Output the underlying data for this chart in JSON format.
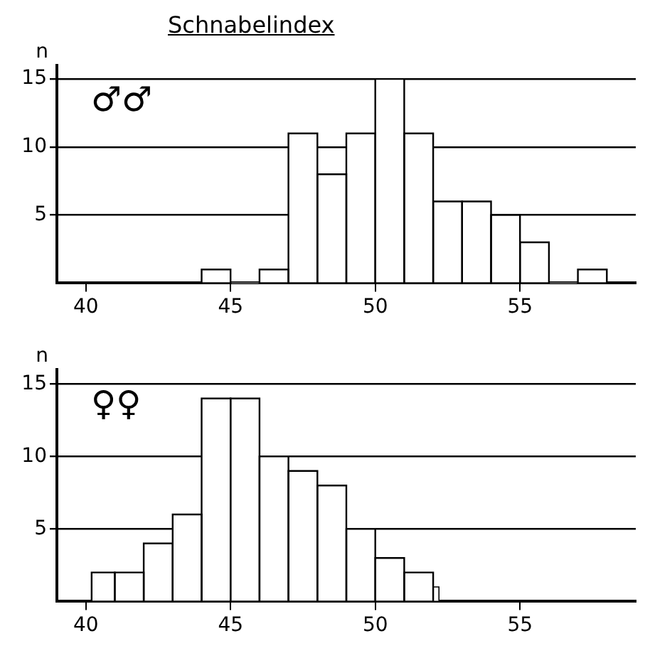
{
  "chart_data": [
    {
      "type": "histogram",
      "title": "Schnabelindex",
      "ylabel": "n",
      "annotations": [
        "♂♂"
      ],
      "bins": [
        44,
        45,
        46,
        47,
        48,
        49,
        50,
        51,
        52,
        53,
        54,
        55,
        56,
        57,
        58
      ],
      "values": [
        1,
        0,
        1,
        11,
        8,
        11,
        15,
        11,
        6,
        6,
        5,
        3,
        0,
        1
      ],
      "color": "#ffffff",
      "xlim": [
        39,
        59
      ],
      "ylim": [
        0,
        16
      ],
      "xticks": [
        40,
        45,
        50,
        55
      ],
      "yticks": [
        5,
        10,
        15
      ],
      "grid": "y"
    },
    {
      "type": "histogram",
      "ylabel": "n",
      "annotations": [
        "♀♀"
      ],
      "bins": [
        40.2,
        41,
        42,
        43,
        44,
        45,
        46,
        47,
        48,
        49,
        50,
        51,
        52,
        52.2
      ],
      "values": [
        2,
        2,
        4,
        6,
        14,
        14,
        10,
        9,
        8,
        5,
        3,
        2,
        1
      ],
      "color": "#ffffff",
      "xlim": [
        39,
        59
      ],
      "ylim": [
        0,
        16
      ],
      "xticks": [
        40,
        45,
        50,
        55
      ],
      "yticks": [
        5,
        10,
        15
      ],
      "grid": "y"
    }
  ]
}
